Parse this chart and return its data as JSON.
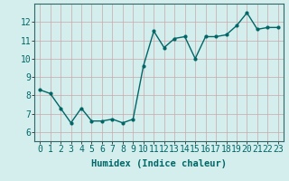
{
  "x": [
    0,
    1,
    2,
    3,
    4,
    5,
    6,
    7,
    8,
    9,
    10,
    11,
    12,
    13,
    14,
    15,
    16,
    17,
    18,
    19,
    20,
    21,
    22,
    23
  ],
  "y": [
    8.3,
    8.1,
    7.3,
    6.5,
    7.3,
    6.6,
    6.6,
    6.7,
    6.5,
    6.7,
    9.6,
    11.5,
    10.6,
    11.1,
    11.2,
    10.0,
    11.2,
    11.2,
    11.3,
    11.8,
    12.5,
    11.6,
    11.7,
    11.7
  ],
  "line_color": "#006666",
  "marker": "o",
  "marker_size": 2.0,
  "linewidth": 1.0,
  "xlabel": "Humidex (Indice chaleur)",
  "xlabel_fontsize": 7.5,
  "tick_fontsize": 7,
  "xlim": [
    -0.5,
    23.5
  ],
  "ylim": [
    5.5,
    13.0
  ],
  "yticks": [
    6,
    7,
    8,
    9,
    10,
    11,
    12
  ],
  "xticks": [
    0,
    1,
    2,
    3,
    4,
    5,
    6,
    7,
    8,
    9,
    10,
    11,
    12,
    13,
    14,
    15,
    16,
    17,
    18,
    19,
    20,
    21,
    22,
    23
  ],
  "background_color": "#d4eeee",
  "grid_color": "#b8d8d8",
  "axes_edge_color": "#336666"
}
